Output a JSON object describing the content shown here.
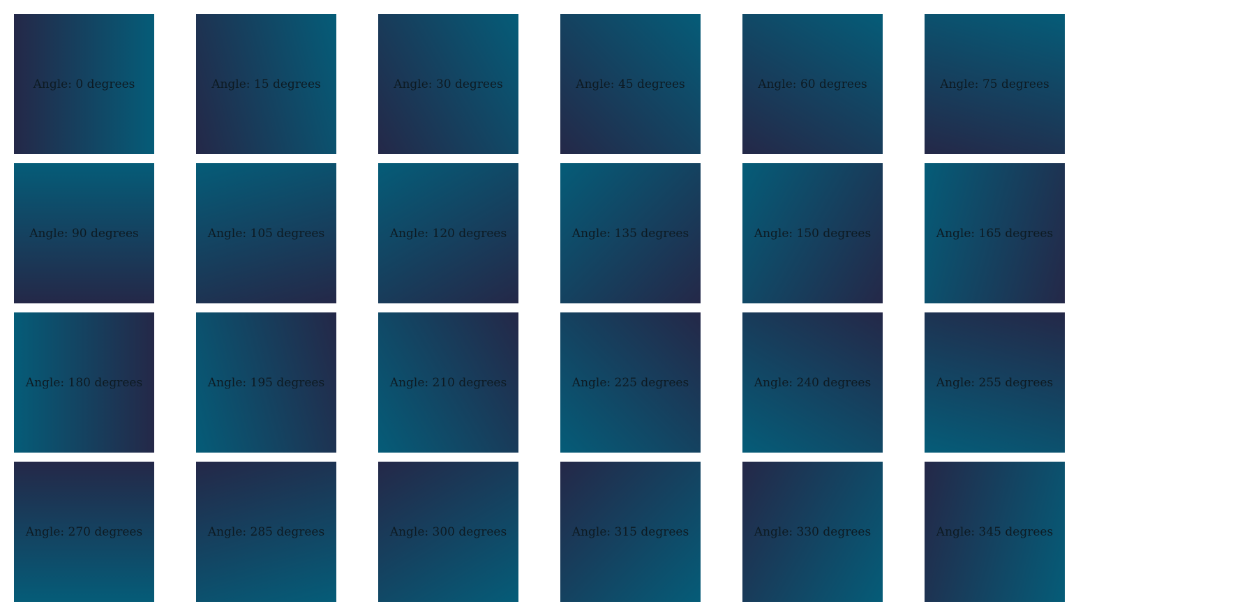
{
  "colors": {
    "dark": "#242848",
    "teal": "#055c78"
  },
  "tiles": [
    {
      "angle": 0,
      "label": "Angle: 0 degrees"
    },
    {
      "angle": 15,
      "label": "Angle: 15 degrees"
    },
    {
      "angle": 30,
      "label": "Angle: 30 degrees"
    },
    {
      "angle": 45,
      "label": "Angle: 45 degrees"
    },
    {
      "angle": 60,
      "label": "Angle: 60 degrees"
    },
    {
      "angle": 75,
      "label": "Angle: 75 degrees"
    },
    {
      "angle": 90,
      "label": "Angle: 90 degrees"
    },
    {
      "angle": 105,
      "label": "Angle: 105 degrees"
    },
    {
      "angle": 120,
      "label": "Angle: 120 degrees"
    },
    {
      "angle": 135,
      "label": "Angle: 135 degrees"
    },
    {
      "angle": 150,
      "label": "Angle: 150 degrees"
    },
    {
      "angle": 165,
      "label": "Angle: 165 degrees"
    },
    {
      "angle": 180,
      "label": "Angle: 180 degrees"
    },
    {
      "angle": 195,
      "label": "Angle: 195 degrees"
    },
    {
      "angle": 210,
      "label": "Angle: 210 degrees"
    },
    {
      "angle": 225,
      "label": "Angle: 225 degrees"
    },
    {
      "angle": 240,
      "label": "Angle: 240 degrees"
    },
    {
      "angle": 255,
      "label": "Angle: 255 degrees"
    },
    {
      "angle": 270,
      "label": "Angle: 270 degrees"
    },
    {
      "angle": 285,
      "label": "Angle: 285 degrees"
    },
    {
      "angle": 300,
      "label": "Angle: 300 degrees"
    },
    {
      "angle": 315,
      "label": "Angle: 315 degrees"
    },
    {
      "angle": 330,
      "label": "Angle: 330 degrees"
    },
    {
      "angle": 345,
      "label": "Angle: 345 degrees"
    }
  ]
}
